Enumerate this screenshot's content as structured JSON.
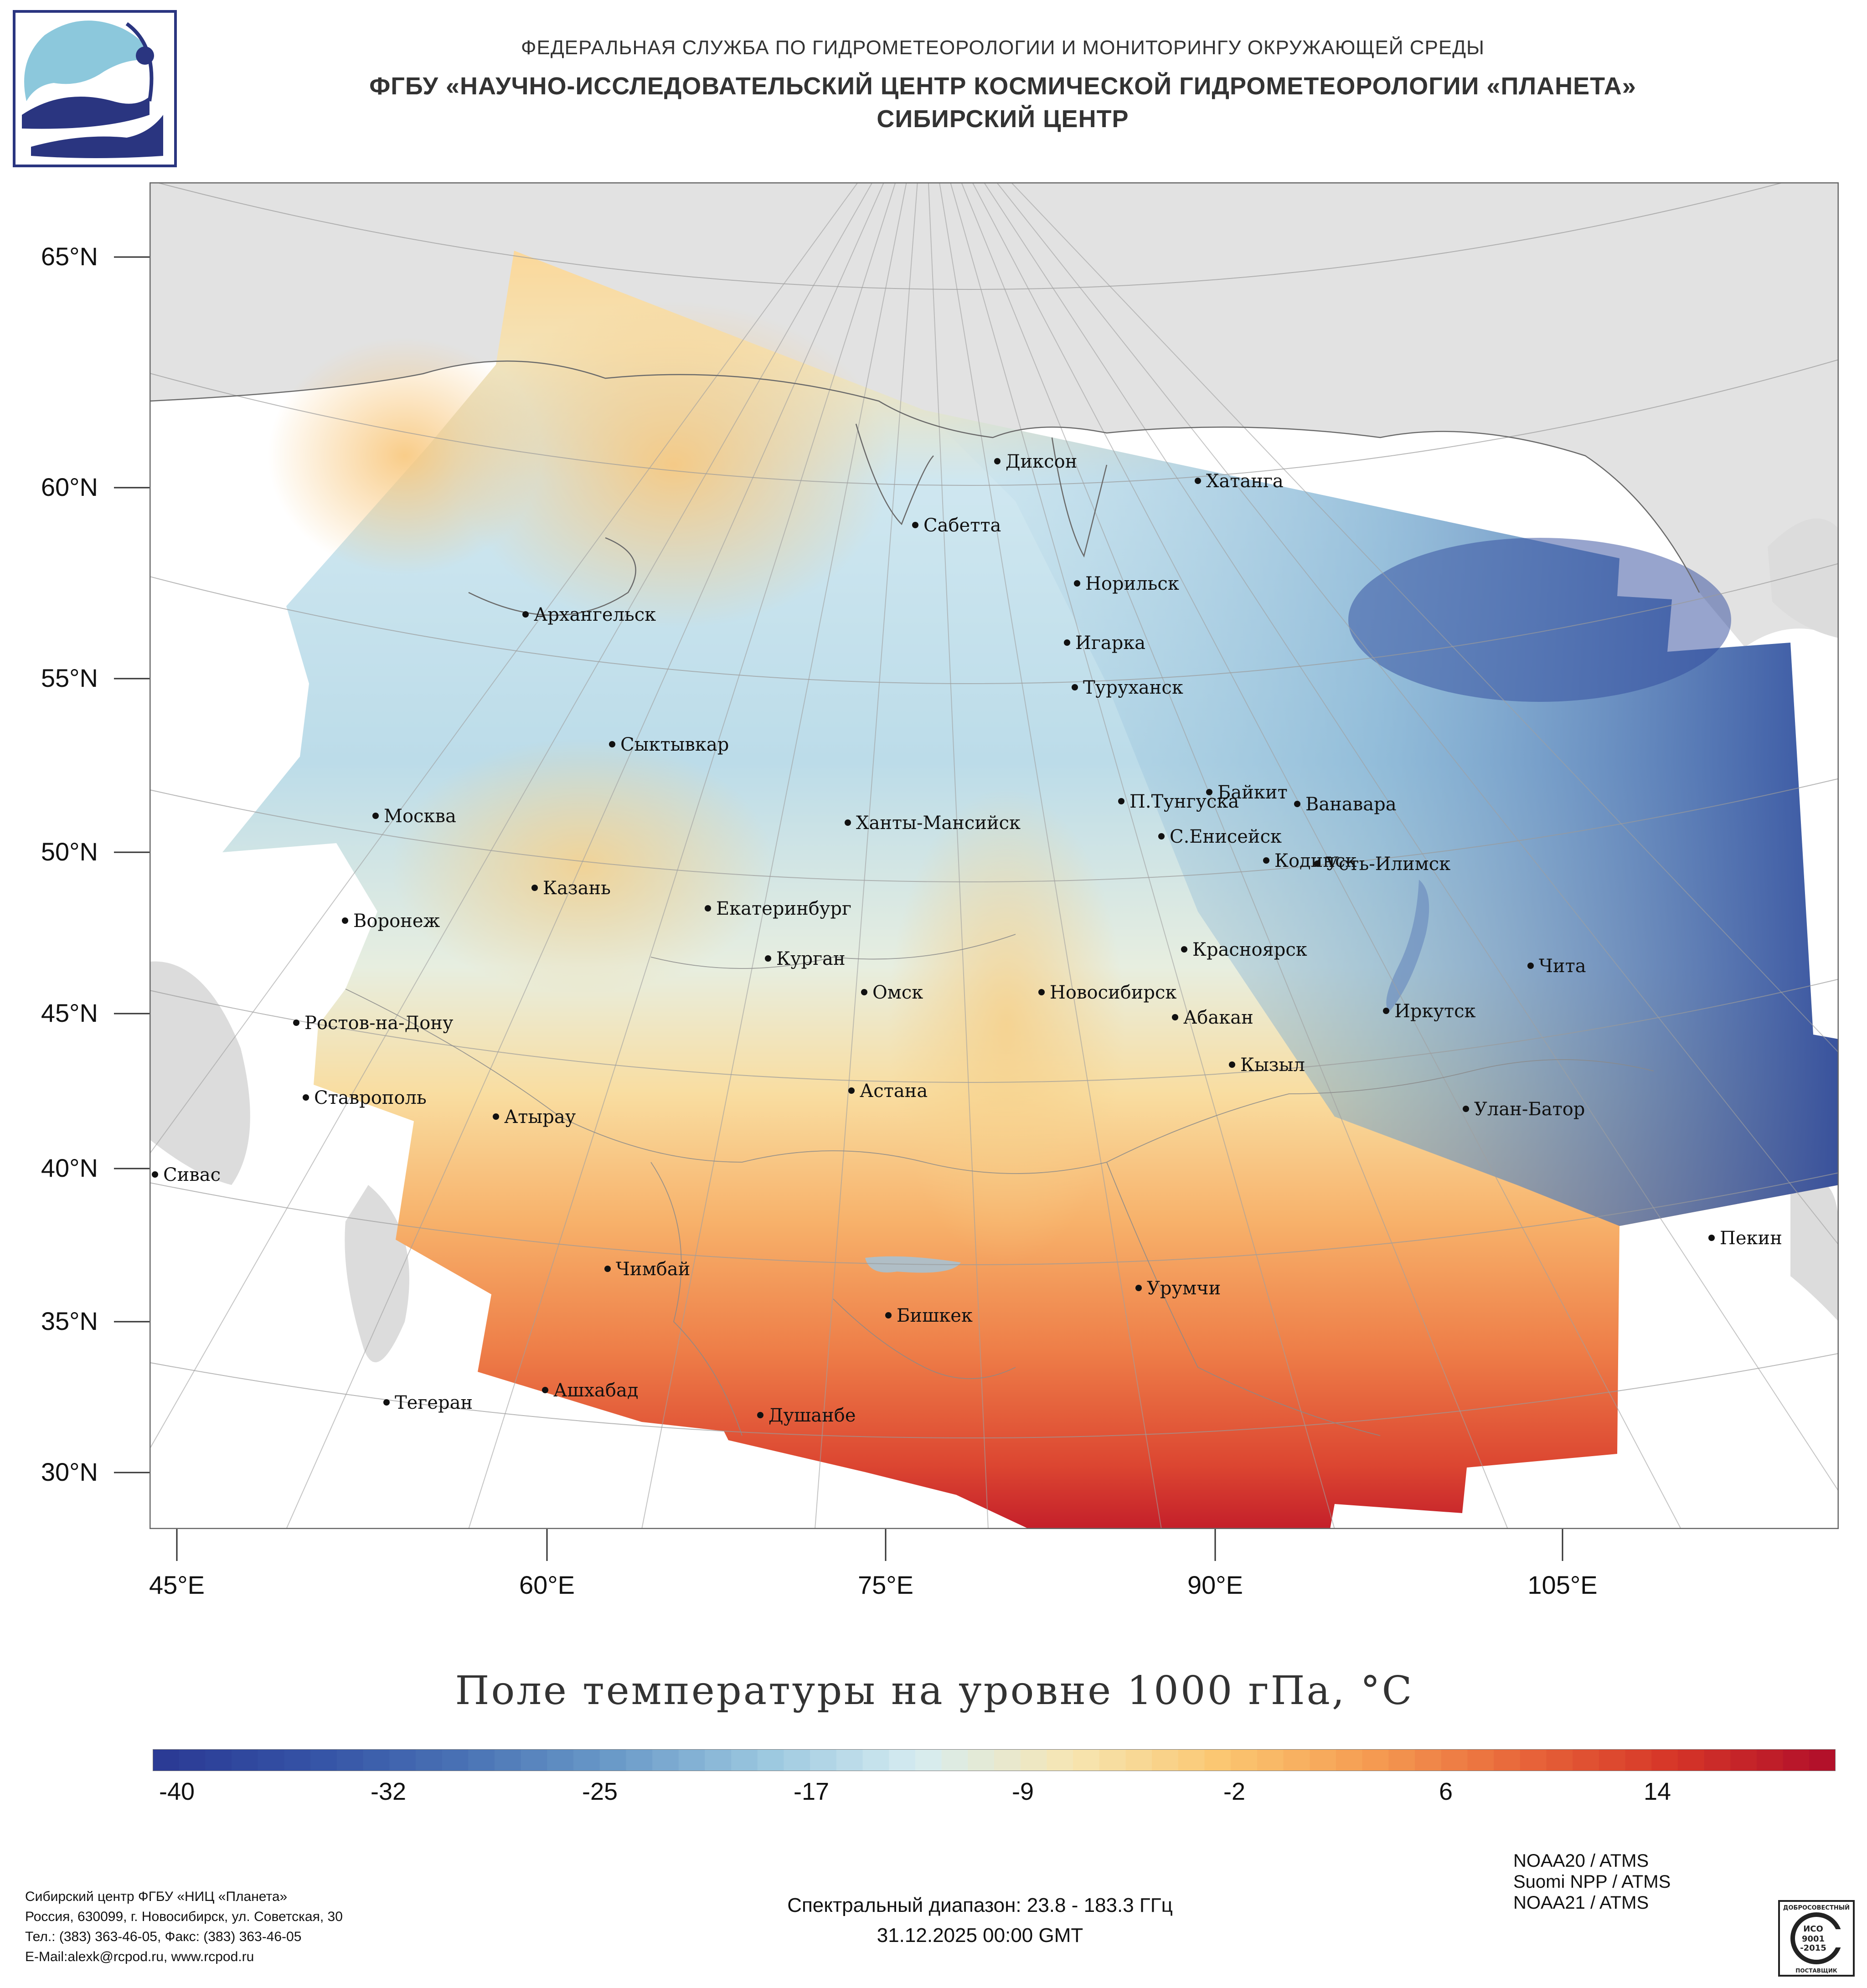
{
  "header": {
    "line1": "ФЕДЕРАЛЬНАЯ СЛУЖБА ПО ГИДРОМЕТЕОРОЛОГИИ И МОНИТОРИНГУ ОКРУЖАЮЩЕЙ СРЕДЫ",
    "line2": "ФГБУ «НАУЧНО-ИССЛЕДОВАТЕЛЬСКИЙ ЦЕНТР КОСМИЧЕСКОЙ ГИДРОМЕТЕОРОЛОГИИ «ПЛАНЕТА»",
    "line3": "СИБИРСКИЙ ЦЕНТР"
  },
  "map": {
    "title": "Поле температуры на уровне 1000 гПа, °C",
    "lat_labels": [
      "65°N",
      "60°N",
      "55°N",
      "50°N",
      "45°N",
      "40°N",
      "35°N",
      "30°N"
    ],
    "lon_labels": [
      "45°E",
      "60°E",
      "75°E",
      "90°E",
      "105°E"
    ],
    "cities": [
      {
        "name": "Диксон"
      },
      {
        "name": "Хатанга"
      },
      {
        "name": "Сабетта"
      },
      {
        "name": "Норильск"
      },
      {
        "name": "Архангельск"
      },
      {
        "name": "Игарка"
      },
      {
        "name": "Туруханск"
      },
      {
        "name": "Сыктывкар"
      },
      {
        "name": "Байкит"
      },
      {
        "name": "П.Тунгуска"
      },
      {
        "name": "Ванавара"
      },
      {
        "name": "Москва"
      },
      {
        "name": "Ханты-Мансийск"
      },
      {
        "name": "С.Енисейск"
      },
      {
        "name": "Кодинск"
      },
      {
        "name": "Усть-Илимск"
      },
      {
        "name": "Казань"
      },
      {
        "name": "Екатеринбург"
      },
      {
        "name": "Воронеж"
      },
      {
        "name": "Красноярск"
      },
      {
        "name": "Курган"
      },
      {
        "name": "Чита"
      },
      {
        "name": "Омск"
      },
      {
        "name": "Новосибирск"
      },
      {
        "name": "Иркутск"
      },
      {
        "name": "Ростов-на-Дону"
      },
      {
        "name": "Абакан"
      },
      {
        "name": "Кызыл"
      },
      {
        "name": "Астана"
      },
      {
        "name": "Ставрополь"
      },
      {
        "name": "Улан-Батор"
      },
      {
        "name": "Атырау"
      },
      {
        "name": "Сивас"
      },
      {
        "name": "Пекин"
      },
      {
        "name": "Чимбай"
      },
      {
        "name": "Урумчи"
      },
      {
        "name": "Бишкек"
      },
      {
        "name": "Ашхабад"
      },
      {
        "name": "Тегеран"
      },
      {
        "name": "Душанбе"
      }
    ]
  },
  "colorbar": {
    "labels": [
      "-40",
      "-32",
      "-25",
      "-17",
      "-9",
      "-2",
      "6",
      "14"
    ],
    "colors": [
      "#2b3b95",
      "#3553a6",
      "#4a73b5",
      "#6b9bc9",
      "#9cc8e0",
      "#d6ecf1",
      "#f6e6b3",
      "#fbc771",
      "#f59c52",
      "#e8663a",
      "#d63628",
      "#b3112a"
    ]
  },
  "satellites": [
    "NOAA20 / ATMS",
    "Suomi NPP / ATMS",
    "NOAA21 / ATMS"
  ],
  "footer": {
    "org": "Сибирский центр ФГБУ «НИЦ «Планета»",
    "address": "Россия, 630099, г. Новосибирск, ул. Советская, 30",
    "phone": "Тел.: (383) 363-46-05, Факс: (383) 363-46-05",
    "email": "E-Mail:alexk@rcpod.ru, www.rcpod.ru",
    "spectral": "Спектральный диапазон: 23.8 - 183.3 ГГц",
    "datetime": "31.12.2025 00:00 GMT"
  },
  "logos": {
    "iso_top": "ДОБРОСОВЕСТНЫЙ",
    "iso_main": "ИСО",
    "iso_num1": "9001",
    "iso_num2": "-2015",
    "iso_bottom": "ПОСТАВЩИК"
  }
}
